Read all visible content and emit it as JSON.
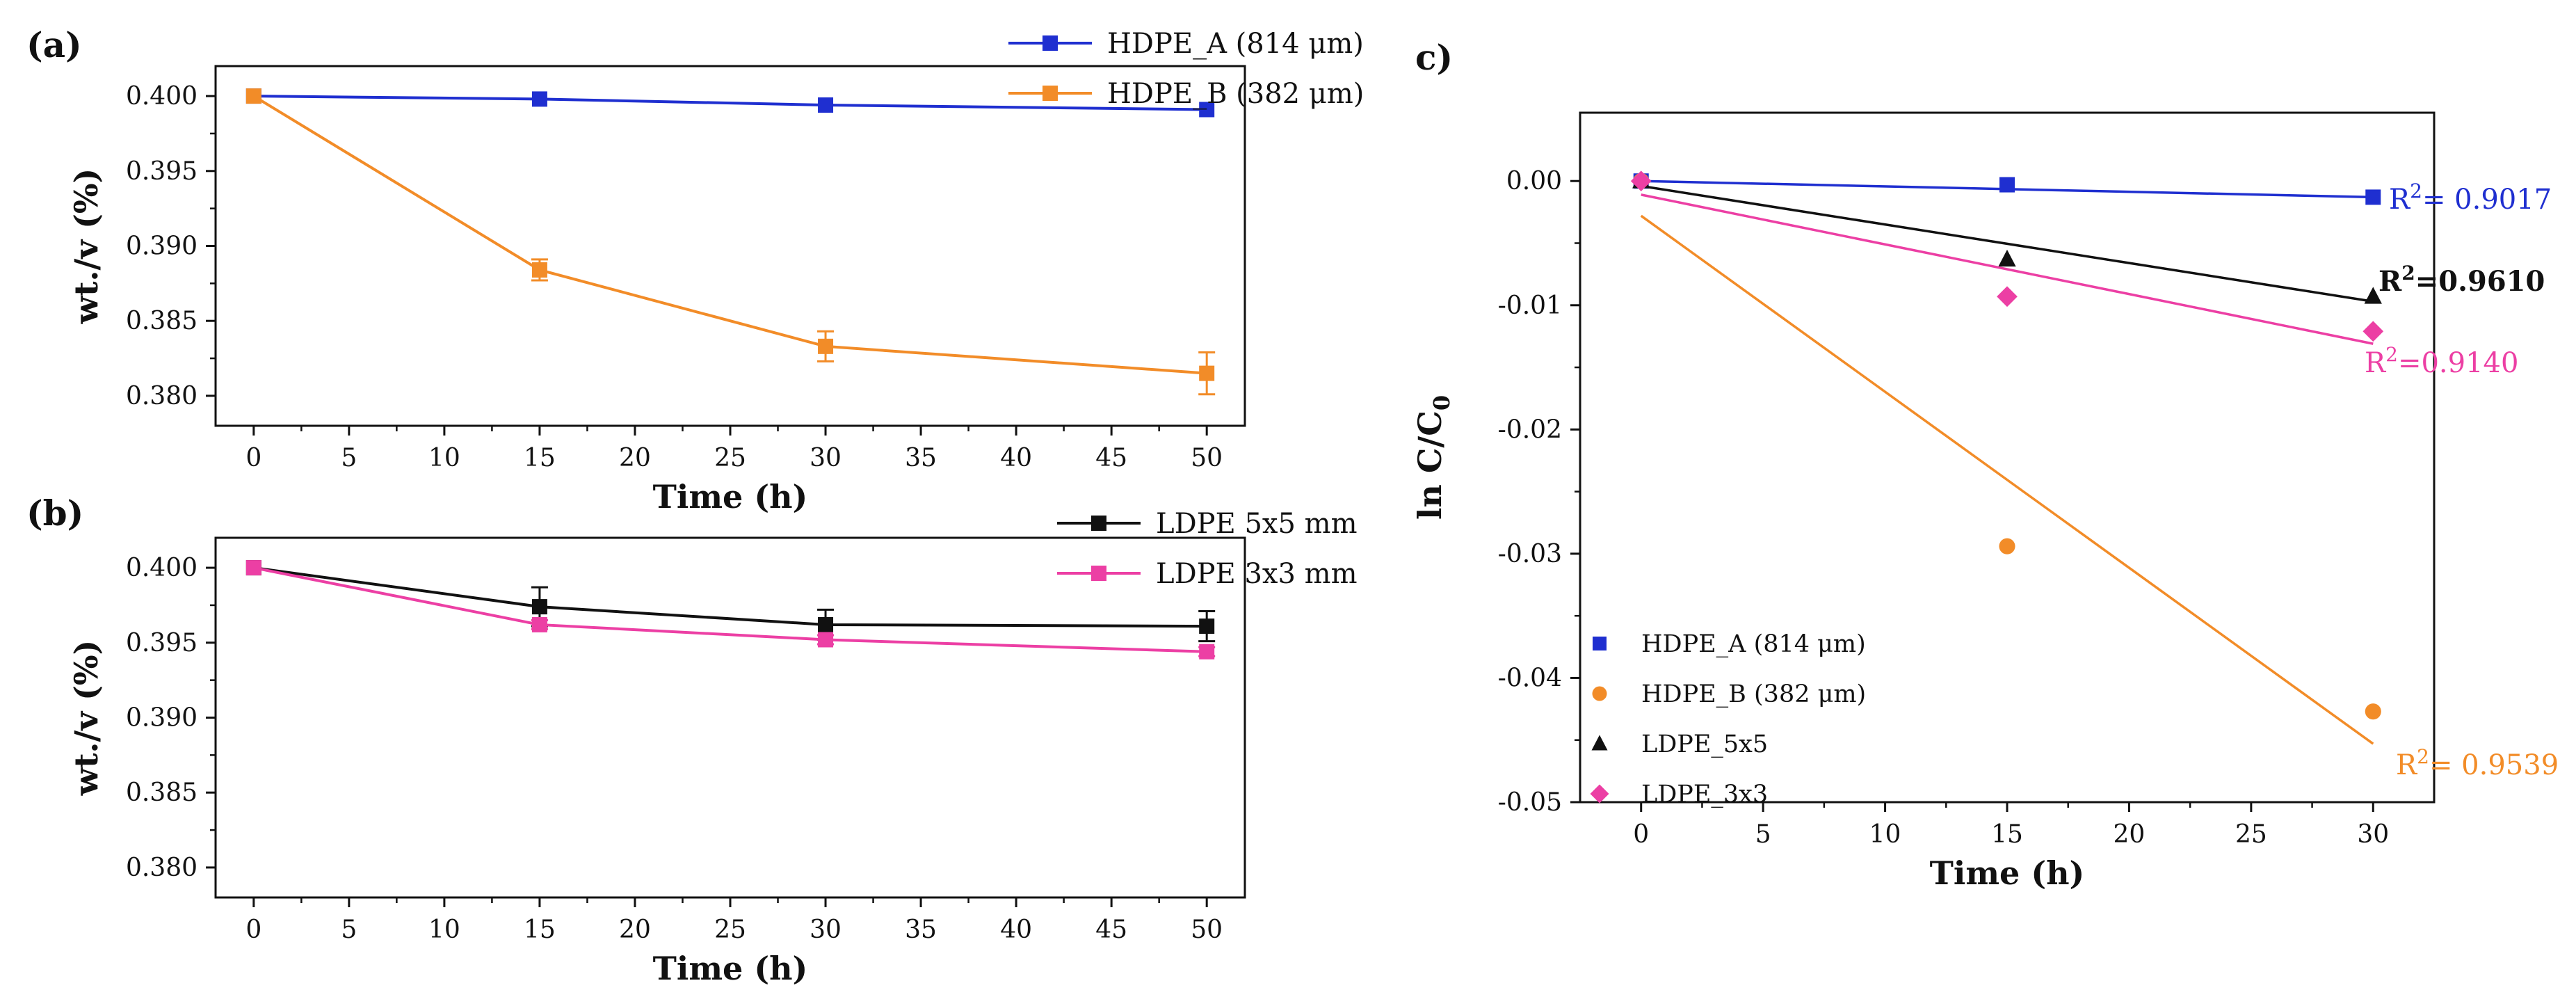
{
  "colors": {
    "blue": "#1f2fd0",
    "orange": "#f28c28",
    "black": "#111111",
    "pink": "#ec3fa4"
  },
  "chart_data": [
    {
      "panel": "(a)",
      "type": "line",
      "xlabel": "Time (h)",
      "ylabel": "wt./v (%)",
      "xlim": [
        -2,
        52
      ],
      "ylim": [
        0.378,
        0.402
      ],
      "xticks": [
        0,
        5,
        10,
        15,
        20,
        25,
        30,
        35,
        40,
        45,
        50
      ],
      "yticks": [
        0.38,
        0.385,
        0.39,
        0.395,
        0.4
      ],
      "ytick_labels": [
        "0.380",
        "0.385",
        "0.390",
        "0.395",
        "0.400"
      ],
      "legend": "top-right",
      "series": [
        {
          "name": "HDPE_A (814 μm)",
          "color": "#1f2fd0",
          "marker": "square",
          "x": [
            0,
            15,
            30,
            50
          ],
          "y": [
            0.4,
            0.3998,
            0.3994,
            0.3991
          ],
          "err": [
            0.0001,
            0.0001,
            0.0001,
            0.0001
          ]
        },
        {
          "name": "HDPE_B (382 μm)",
          "color": "#f28c28",
          "marker": "square",
          "x": [
            0,
            15,
            30,
            50
          ],
          "y": [
            0.4,
            0.3884,
            0.3833,
            0.3815
          ],
          "err": [
            0.0001,
            0.0007,
            0.001,
            0.0014
          ]
        }
      ]
    },
    {
      "panel": "(b)",
      "type": "line",
      "xlabel": "Time (h)",
      "ylabel": "wt./v (%)",
      "xlim": [
        -2,
        52
      ],
      "ylim": [
        0.378,
        0.402
      ],
      "xticks": [
        0,
        5,
        10,
        15,
        20,
        25,
        30,
        35,
        40,
        45,
        50
      ],
      "yticks": [
        0.38,
        0.385,
        0.39,
        0.395,
        0.4
      ],
      "ytick_labels": [
        "0.380",
        "0.385",
        "0.390",
        "0.395",
        "0.400"
      ],
      "legend": "top-right",
      "series": [
        {
          "name": "LDPE 5x5 mm",
          "color": "#111111",
          "marker": "square",
          "x": [
            0,
            15,
            30,
            50
          ],
          "y": [
            0.4,
            0.3974,
            0.3962,
            0.3961
          ],
          "err": [
            0.0001,
            0.0013,
            0.001,
            0.001
          ]
        },
        {
          "name": "LDPE 3x3 mm",
          "color": "#ec3fa4",
          "marker": "square",
          "x": [
            0,
            15,
            30,
            50
          ],
          "y": [
            0.4,
            0.3962,
            0.3952,
            0.3944
          ],
          "err": [
            0.0001,
            0.0003,
            0.0003,
            0.0003
          ]
        }
      ]
    },
    {
      "panel": "c)",
      "type": "scatter",
      "xlabel": "Time (h)",
      "ylabel": "ln C/C",
      "ylabel_sub": "0",
      "xlim": [
        -2.5,
        32.5
      ],
      "ylim": [
        -0.05,
        0.0055
      ],
      "xticks": [
        0,
        5,
        10,
        15,
        20,
        25,
        30
      ],
      "yticks": [
        0.0,
        -0.01,
        -0.02,
        -0.03,
        -0.04,
        -0.05
      ],
      "ytick_labels": [
        "0.00",
        "-0.01",
        "-0.02",
        "-0.03",
        "-0.04",
        "-0.05"
      ],
      "legend": "bottom-left",
      "series": [
        {
          "name": "HDPE_A (814 μm)",
          "color": "#1f2fd0",
          "marker": "square",
          "x": [
            0,
            15,
            30
          ],
          "y": [
            0.0,
            -0.0003,
            -0.0013
          ],
          "fit": [
            [
              0,
              0.0
            ],
            [
              30,
              -0.0013
            ]
          ],
          "r2_label": "R",
          "r2_sup": "2",
          "r2_value": "= 0.9017"
        },
        {
          "name": "HDPE_B (382 μm)",
          "color": "#f28c28",
          "marker": "circle",
          "x": [
            0,
            15,
            30
          ],
          "y": [
            0.0,
            -0.0294,
            -0.0427
          ],
          "fit": [
            [
              0,
              -0.0028
            ],
            [
              30,
              -0.0453
            ]
          ],
          "r2_label": "R",
          "r2_sup": "2",
          "r2_value": "= 0.9539"
        },
        {
          "name": "LDPE_5x5",
          "color": "#111111",
          "marker": "triangle",
          "x": [
            0,
            15,
            30
          ],
          "y": [
            0.0,
            -0.0063,
            -0.0093
          ],
          "fit": [
            [
              0,
              -0.0004
            ],
            [
              30,
              -0.0097
            ]
          ],
          "r2_label": "R",
          "r2_sup": "2",
          "r2_value": "=0.9610"
        },
        {
          "name": "LDPE_3x3",
          "color": "#ec3fa4",
          "marker": "diamond",
          "x": [
            0,
            15,
            30
          ],
          "y": [
            0.0,
            -0.0093,
            -0.0121
          ],
          "fit": [
            [
              0,
              -0.0011
            ],
            [
              30,
              -0.0131
            ]
          ],
          "r2_label": "R",
          "r2_sup": "2",
          "r2_value": "=0.9140"
        }
      ]
    }
  ]
}
